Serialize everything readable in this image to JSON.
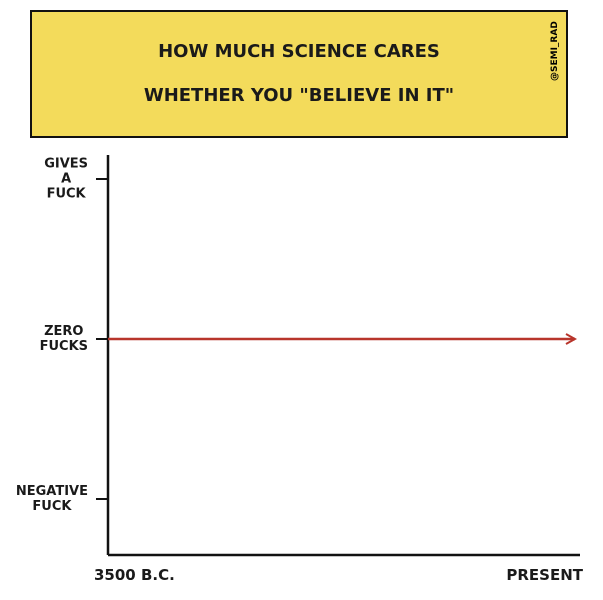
{
  "chart_data": {
    "type": "line",
    "title": "HOW MUCH SCIENCE CARES WHETHER YOU \"BELIEVE IN IT\"",
    "credit": "@SEMI_RAD",
    "categories": [
      "3500 B.C.",
      "PRESENT"
    ],
    "values": [
      0,
      0
    ],
    "color": "#b8352b",
    "ylim": [
      -1.35,
      1.15
    ],
    "yticks": [
      {
        "value": -1,
        "label": "NEGATIVE FUCK"
      },
      {
        "value": 0,
        "label": "ZERO FUCKS"
      },
      {
        "value": 1,
        "label": "GIVES A FUCK"
      }
    ]
  }
}
